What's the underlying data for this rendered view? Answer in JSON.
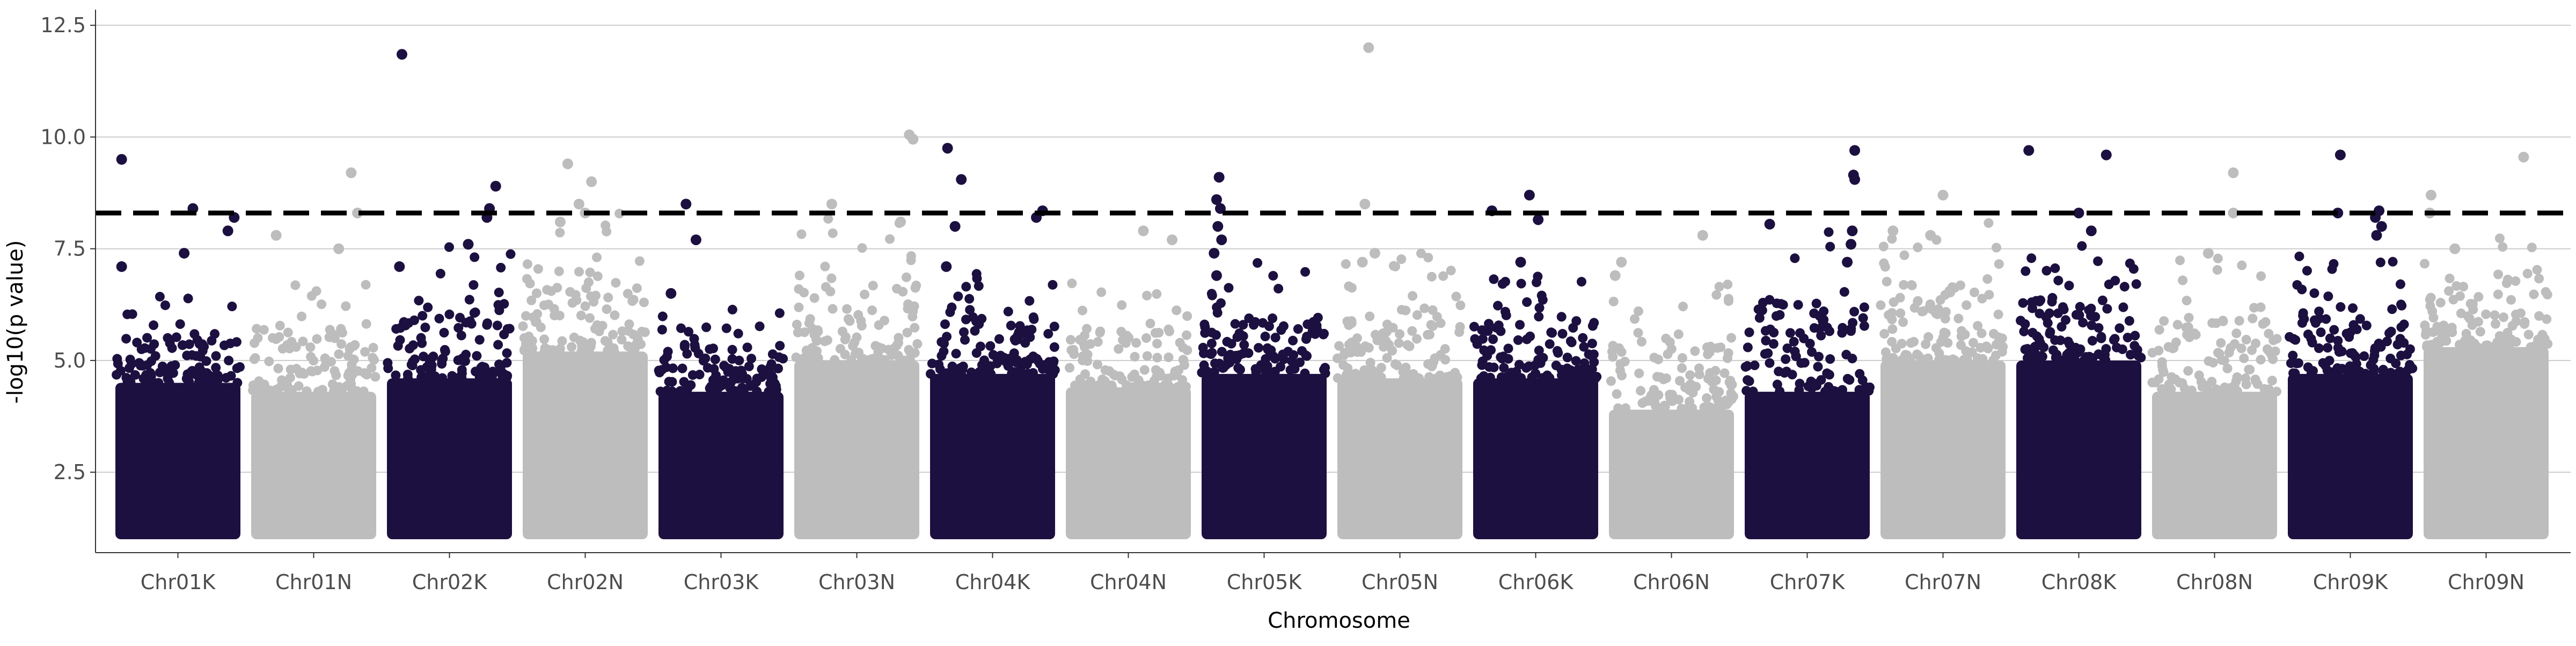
{
  "chart_data": {
    "type": "scatter",
    "title": "",
    "xlabel": "Chromosome",
    "ylabel": "-log10(p value)",
    "ylim": [
      0.7,
      12.85
    ],
    "yticks": [
      2.5,
      5.0,
      7.5,
      10.0,
      12.5
    ],
    "ytick_labels": [
      "2.5",
      "5.0",
      "7.5",
      "10.0",
      "12.5"
    ],
    "threshold": 8.3,
    "grid": "horizontal major",
    "legend": "none",
    "colors": {
      "dark": "#1c1040",
      "light": "#bdbdbd",
      "grid": "#cccccc",
      "threshold": "#000000"
    },
    "categories": [
      "Chr01K",
      "Chr01N",
      "Chr02K",
      "Chr02N",
      "Chr03K",
      "Chr03N",
      "Chr04K",
      "Chr04N",
      "Chr05K",
      "Chr05N",
      "Chr06K",
      "Chr06N",
      "Chr07K",
      "Chr07N",
      "Chr08K",
      "Chr08N",
      "Chr09K",
      "Chr09N"
    ],
    "series": [
      {
        "chromosome": "Chr01K",
        "color": "dark",
        "bulk_top": 4.5,
        "upper": 6.5,
        "highlights": [
          [
            0.05,
            9.5
          ],
          [
            0.62,
            8.4
          ],
          [
            0.55,
            7.4
          ],
          [
            0.95,
            8.2
          ],
          [
            0.9,
            7.9
          ],
          [
            0.05,
            7.1
          ]
        ]
      },
      {
        "chromosome": "Chr01N",
        "color": "light",
        "bulk_top": 4.3,
        "upper": 6.9,
        "highlights": [
          [
            0.8,
            9.2
          ],
          [
            0.85,
            8.3
          ],
          [
            0.2,
            7.8
          ],
          [
            0.7,
            7.5
          ]
        ]
      },
      {
        "chromosome": "Chr02K",
        "color": "dark",
        "bulk_top": 4.6,
        "upper": 7.6,
        "highlights": [
          [
            0.12,
            11.85
          ],
          [
            0.87,
            8.9
          ],
          [
            0.82,
            8.4
          ],
          [
            0.8,
            8.2
          ],
          [
            0.65,
            7.6
          ],
          [
            0.1,
            7.1
          ]
        ]
      },
      {
        "chromosome": "Chr02N",
        "color": "light",
        "bulk_top": 5.2,
        "upper": 8.6,
        "highlights": [
          [
            0.36,
            9.4
          ],
          [
            0.55,
            9.0
          ],
          [
            0.45,
            8.5
          ],
          [
            0.5,
            8.3
          ],
          [
            0.3,
            8.1
          ]
        ]
      },
      {
        "chromosome": "Chr03K",
        "color": "dark",
        "bulk_top": 4.3,
        "upper": 6.3,
        "highlights": [
          [
            0.22,
            8.5
          ],
          [
            0.3,
            7.7
          ],
          [
            0.1,
            6.5
          ]
        ]
      },
      {
        "chromosome": "Chr03N",
        "color": "light",
        "bulk_top": 5.0,
        "upper": 8.2,
        "highlights": [
          [
            0.92,
            10.05
          ],
          [
            0.95,
            9.95
          ],
          [
            0.3,
            8.5
          ],
          [
            0.85,
            8.1
          ]
        ]
      },
      {
        "chromosome": "Chr04K",
        "color": "dark",
        "bulk_top": 4.7,
        "upper": 7.4,
        "highlights": [
          [
            0.14,
            9.75
          ],
          [
            0.25,
            9.05
          ],
          [
            0.9,
            8.35
          ],
          [
            0.2,
            8.0
          ],
          [
            0.85,
            8.2
          ],
          [
            0.13,
            7.1
          ]
        ]
      },
      {
        "chromosome": "Chr04N",
        "color": "light",
        "bulk_top": 4.4,
        "upper": 6.8,
        "highlights": [
          [
            0.62,
            7.9
          ],
          [
            0.85,
            7.7
          ]
        ]
      },
      {
        "chromosome": "Chr05K",
        "color": "dark",
        "bulk_top": 4.7,
        "upper": 7.2,
        "highlights": [
          [
            0.14,
            9.1
          ],
          [
            0.12,
            8.6
          ],
          [
            0.15,
            8.4
          ],
          [
            0.13,
            8.0
          ],
          [
            0.16,
            7.7
          ],
          [
            0.1,
            7.4
          ],
          [
            0.12,
            6.9
          ]
        ]
      },
      {
        "chromosome": "Chr05N",
        "color": "light",
        "bulk_top": 4.6,
        "upper": 7.4,
        "highlights": [
          [
            0.25,
            12.0
          ],
          [
            0.22,
            8.5
          ],
          [
            0.3,
            7.4
          ],
          [
            0.2,
            7.2
          ]
        ]
      },
      {
        "chromosome": "Chr06K",
        "color": "dark",
        "bulk_top": 4.6,
        "upper": 6.9,
        "highlights": [
          [
            0.45,
            8.7
          ],
          [
            0.52,
            8.15
          ],
          [
            0.15,
            8.35
          ],
          [
            0.38,
            7.2
          ]
        ]
      },
      {
        "chromosome": "Chr06N",
        "color": "light",
        "bulk_top": 3.9,
        "upper": 6.9,
        "highlights": [
          [
            0.1,
            7.2
          ],
          [
            0.05,
            6.9
          ],
          [
            0.75,
            7.8
          ]
        ]
      },
      {
        "chromosome": "Chr07K",
        "color": "dark",
        "bulk_top": 4.3,
        "upper": 8.1,
        "highlights": [
          [
            0.88,
            9.7
          ],
          [
            0.87,
            9.15
          ],
          [
            0.88,
            9.05
          ],
          [
            0.2,
            8.05
          ],
          [
            0.86,
            7.9
          ],
          [
            0.85,
            7.6
          ],
          [
            0.82,
            7.2
          ]
        ]
      },
      {
        "chromosome": "Chr07N",
        "color": "light",
        "bulk_top": 5.0,
        "upper": 8.1,
        "highlights": [
          [
            0.5,
            8.7
          ],
          [
            0.1,
            7.9
          ],
          [
            0.4,
            7.8
          ]
        ]
      },
      {
        "chromosome": "Chr08K",
        "color": "dark",
        "bulk_top": 5.0,
        "upper": 7.6,
        "highlights": [
          [
            0.1,
            9.7
          ],
          [
            0.72,
            9.6
          ],
          [
            0.5,
            8.3
          ],
          [
            0.6,
            7.9
          ]
        ]
      },
      {
        "chromosome": "Chr08N",
        "color": "light",
        "bulk_top": 4.3,
        "upper": 7.3,
        "highlights": [
          [
            0.65,
            9.2
          ],
          [
            0.65,
            8.3
          ],
          [
            0.45,
            7.4
          ]
        ]
      },
      {
        "chromosome": "Chr09K",
        "color": "dark",
        "bulk_top": 4.7,
        "upper": 7.5,
        "highlights": [
          [
            0.42,
            9.6
          ],
          [
            0.4,
            8.3
          ],
          [
            0.73,
            8.35
          ],
          [
            0.7,
            8.2
          ],
          [
            0.75,
            8.0
          ],
          [
            0.71,
            7.8
          ]
        ]
      },
      {
        "chromosome": "Chr09N",
        "color": "light",
        "bulk_top": 5.3,
        "upper": 7.8,
        "highlights": [
          [
            0.06,
            8.7
          ],
          [
            0.05,
            8.3
          ],
          [
            0.8,
            9.55
          ],
          [
            0.25,
            7.5
          ]
        ]
      }
    ]
  }
}
